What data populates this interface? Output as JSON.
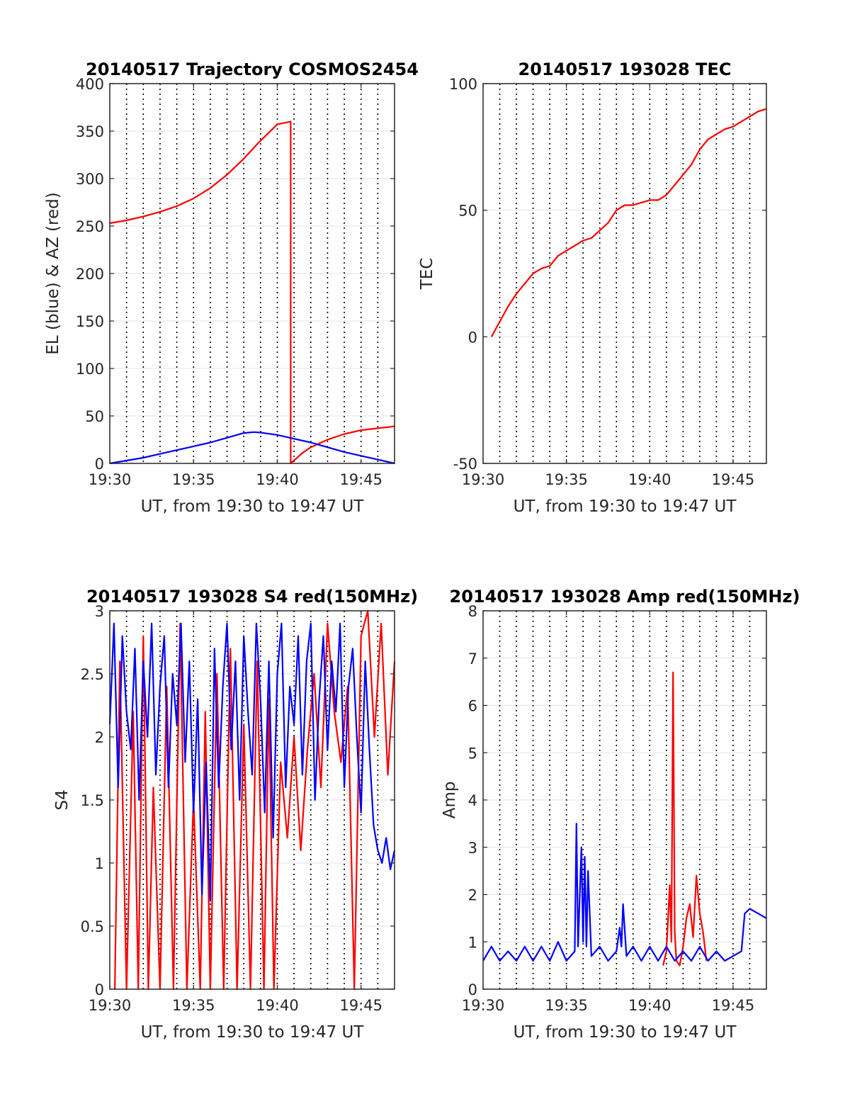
{
  "chart_data": [
    {
      "id": "trajectory",
      "type": "line",
      "title": "20140517 Trajectory COSMOS2454",
      "xlabel": "UT, from 19:30 to 19:47 UT",
      "ylabel": "EL (blue) & AZ (red)",
      "xlim": [
        0,
        17
      ],
      "ylim": [
        0,
        400
      ],
      "grid": true,
      "x_tick_labels": [
        "19:30",
        "19:35",
        "19:40",
        "19:45"
      ],
      "y_tick_labels": [
        "0",
        "50",
        "100",
        "150",
        "200",
        "250",
        "300",
        "350",
        "400"
      ],
      "series": [
        {
          "color": "#ff0000",
          "x": [
            0,
            1,
            2,
            3,
            4,
            5,
            6,
            7,
            8,
            9,
            10,
            10.8,
            10.8,
            11.5,
            12,
            13,
            14,
            15,
            16,
            17
          ],
          "y": [
            253,
            256,
            260,
            265,
            271,
            279,
            290,
            304,
            321,
            340,
            357,
            360,
            0,
            11,
            17,
            25,
            31,
            35,
            37,
            39
          ]
        },
        {
          "color": "#0000ff",
          "x": [
            0,
            1,
            2,
            3,
            4,
            5,
            6,
            7,
            8,
            8.6,
            9,
            10,
            11,
            12,
            13,
            14,
            15,
            16,
            17
          ],
          "y": [
            0,
            3,
            6,
            10,
            14,
            18,
            22,
            27,
            32,
            33,
            32.5,
            30,
            26,
            22,
            17,
            12,
            8,
            4,
            0
          ]
        }
      ]
    },
    {
      "id": "tec",
      "type": "line",
      "title": "20140517 193028 TEC",
      "xlabel": "UT, from 19:30 to 19:47 UT",
      "ylabel": "TEC",
      "xlim": [
        0,
        17
      ],
      "ylim": [
        -50,
        100
      ],
      "grid": true,
      "x_tick_labels": [
        "19:30",
        "19:35",
        "19:40",
        "19:45"
      ],
      "y_tick_labels": [
        "-50",
        "0",
        "50",
        "100"
      ],
      "series": [
        {
          "color": "#ff0000",
          "x": [
            0.5,
            1,
            1.5,
            2,
            2.5,
            3,
            3.5,
            4,
            4.5,
            5,
            5.5,
            6,
            6.5,
            7,
            7.5,
            8,
            8.5,
            9,
            9.5,
            10,
            10.5,
            11,
            11.5,
            12,
            12.5,
            13,
            13.5,
            14,
            14.5,
            15,
            15.5,
            16,
            16.5,
            17
          ],
          "y": [
            0,
            6,
            12,
            17,
            21,
            25,
            27,
            28,
            32,
            34,
            36,
            38,
            39,
            42,
            45,
            50,
            52,
            52,
            53,
            54,
            54,
            56,
            60,
            64,
            68,
            74,
            78,
            80,
            82,
            83,
            85,
            87,
            89,
            90
          ]
        }
      ]
    },
    {
      "id": "s4",
      "type": "line",
      "title": "20140517 193028 S4 red(150MHz)",
      "xlabel": "UT, from 19:30 to 19:47 UT",
      "ylabel": "S4",
      "xlim": [
        0,
        17
      ],
      "ylim": [
        0,
        3
      ],
      "grid": true,
      "x_tick_labels": [
        "19:30",
        "19:35",
        "19:40",
        "19:45"
      ],
      "y_tick_labels": [
        "0",
        "0.5",
        "1",
        "1.5",
        "2",
        "2.5",
        "3"
      ],
      "series": [
        {
          "color": "#ff0000",
          "x": [
            0.3,
            0.6,
            1.0,
            1.4,
            1.7,
            2.0,
            2.3,
            2.6,
            3.0,
            3.4,
            3.8,
            4.2,
            4.6,
            5.0,
            5.4,
            5.7,
            6.0,
            6.4,
            6.8,
            7.2,
            7.6,
            8.0,
            8.4,
            8.8,
            9.2,
            9.5,
            9.8,
            10.2,
            10.6,
            11.0,
            11.4,
            11.8,
            12.2,
            12.6,
            13.0,
            13.4,
            13.8,
            14.2,
            14.6,
            15.0,
            15.4,
            15.8,
            16.2,
            16.6,
            17.0
          ],
          "y": [
            0,
            2.6,
            0,
            2.2,
            0,
            2.8,
            0,
            1.6,
            0,
            2.4,
            0,
            2.9,
            0,
            1.5,
            0,
            2.2,
            0,
            2.5,
            0,
            2.7,
            0,
            2.1,
            0,
            2.6,
            0,
            2.3,
            0,
            1.8,
            1.2,
            2.0,
            1.1,
            1.9,
            2.5,
            1.6,
            2.9,
            2.2,
            1.8,
            2.4,
            0,
            2.8,
            3.0,
            2.0,
            2.9,
            1.7,
            2.6
          ]
        },
        {
          "color": "#0000ff",
          "x": [
            0,
            0.25,
            0.5,
            0.75,
            1.0,
            1.25,
            1.5,
            1.75,
            2.0,
            2.25,
            2.5,
            2.75,
            3.0,
            3.25,
            3.5,
            3.75,
            4.0,
            4.25,
            4.5,
            4.75,
            5.0,
            5.25,
            5.5,
            5.75,
            6.0,
            6.25,
            6.5,
            6.75,
            7.0,
            7.25,
            7.5,
            7.75,
            8.0,
            8.25,
            8.5,
            8.75,
            9.0,
            9.25,
            9.5,
            9.75,
            10.0,
            10.25,
            10.5,
            10.75,
            11.0,
            11.25,
            11.5,
            11.75,
            12.0,
            12.25,
            12.5,
            12.75,
            13.0,
            13.25,
            13.5,
            13.75,
            14.0,
            14.25,
            14.5,
            14.75,
            15.0,
            15.25,
            15.5,
            15.75,
            16.0,
            16.25,
            16.5,
            16.75,
            17.0
          ],
          "y": [
            2.1,
            2.9,
            1.6,
            2.8,
            2.2,
            1.9,
            2.7,
            1.5,
            2.6,
            2.0,
            2.9,
            1.7,
            2.4,
            2.8,
            1.6,
            2.5,
            2.1,
            2.9,
            1.8,
            2.6,
            1.4,
            2.3,
            0.75,
            1.8,
            0.7,
            2.7,
            1.6,
            2.4,
            2.9,
            1.9,
            2.6,
            1.5,
            2.8,
            2.2,
            1.7,
            2.9,
            2.3,
            1.4,
            2.6,
            1.2,
            2.5,
            2.9,
            1.6,
            2.4,
            2.1,
            2.8,
            1.7,
            2.6,
            2.9,
            1.5,
            2.3,
            2.8,
            1.9,
            2.6,
            2.2,
            2.9,
            1.6,
            2.4,
            2.7,
            2.0,
            1.4,
            2.6,
            1.9,
            1.3,
            1.1,
            1.0,
            1.2,
            0.95,
            1.1
          ]
        }
      ]
    },
    {
      "id": "amp",
      "type": "line",
      "title": "20140517 193028 Amp red(150MHz)",
      "xlabel": "UT, from 19:30 to 19:47 UT",
      "ylabel": "Amp",
      "xlim": [
        0,
        17
      ],
      "ylim": [
        0,
        8
      ],
      "grid": true,
      "x_tick_labels": [
        "19:30",
        "19:35",
        "19:40",
        "19:45"
      ],
      "y_tick_labels": [
        "0",
        "1",
        "2",
        "3",
        "4",
        "5",
        "6",
        "7",
        "8"
      ],
      "series": [
        {
          "color": "#ff0000",
          "x": [
            10.8,
            11.0,
            11.2,
            11.3,
            11.4,
            11.5,
            11.6,
            11.8,
            12.0,
            12.2,
            12.4,
            12.6,
            12.8,
            13.0,
            13.2,
            13.4
          ],
          "y": [
            0.5,
            0.8,
            2.2,
            1.0,
            6.7,
            1.2,
            0.6,
            0.5,
            0.9,
            1.5,
            1.8,
            1.1,
            2.4,
            1.6,
            1.2,
            0.6
          ]
        },
        {
          "color": "#0000ff",
          "x": [
            0.0,
            0.5,
            1.0,
            1.5,
            2.0,
            2.5,
            3.0,
            3.5,
            4.0,
            4.5,
            5.0,
            5.5,
            5.6,
            5.7,
            5.9,
            6.0,
            6.1,
            6.2,
            6.3,
            6.5,
            7.0,
            7.5,
            8.0,
            8.2,
            8.3,
            8.4,
            8.6,
            9.0,
            9.5,
            10.0,
            10.5,
            11.0,
            11.5,
            12.0,
            12.5,
            13.0,
            13.5,
            14.0,
            14.5,
            15.0,
            15.5,
            15.7,
            16.0,
            16.5,
            17.0
          ],
          "y": [
            0.6,
            0.9,
            0.6,
            0.8,
            0.6,
            0.9,
            0.6,
            0.9,
            0.6,
            1.0,
            0.6,
            0.8,
            3.5,
            0.9,
            3.0,
            1.0,
            2.8,
            0.9,
            2.5,
            0.7,
            0.9,
            0.6,
            0.8,
            1.3,
            0.9,
            1.8,
            0.7,
            0.9,
            0.6,
            0.9,
            0.6,
            0.9,
            0.6,
            0.8,
            0.6,
            0.9,
            0.6,
            0.8,
            0.6,
            0.7,
            0.8,
            1.6,
            1.7,
            1.6,
            1.5
          ]
        }
      ]
    }
  ]
}
